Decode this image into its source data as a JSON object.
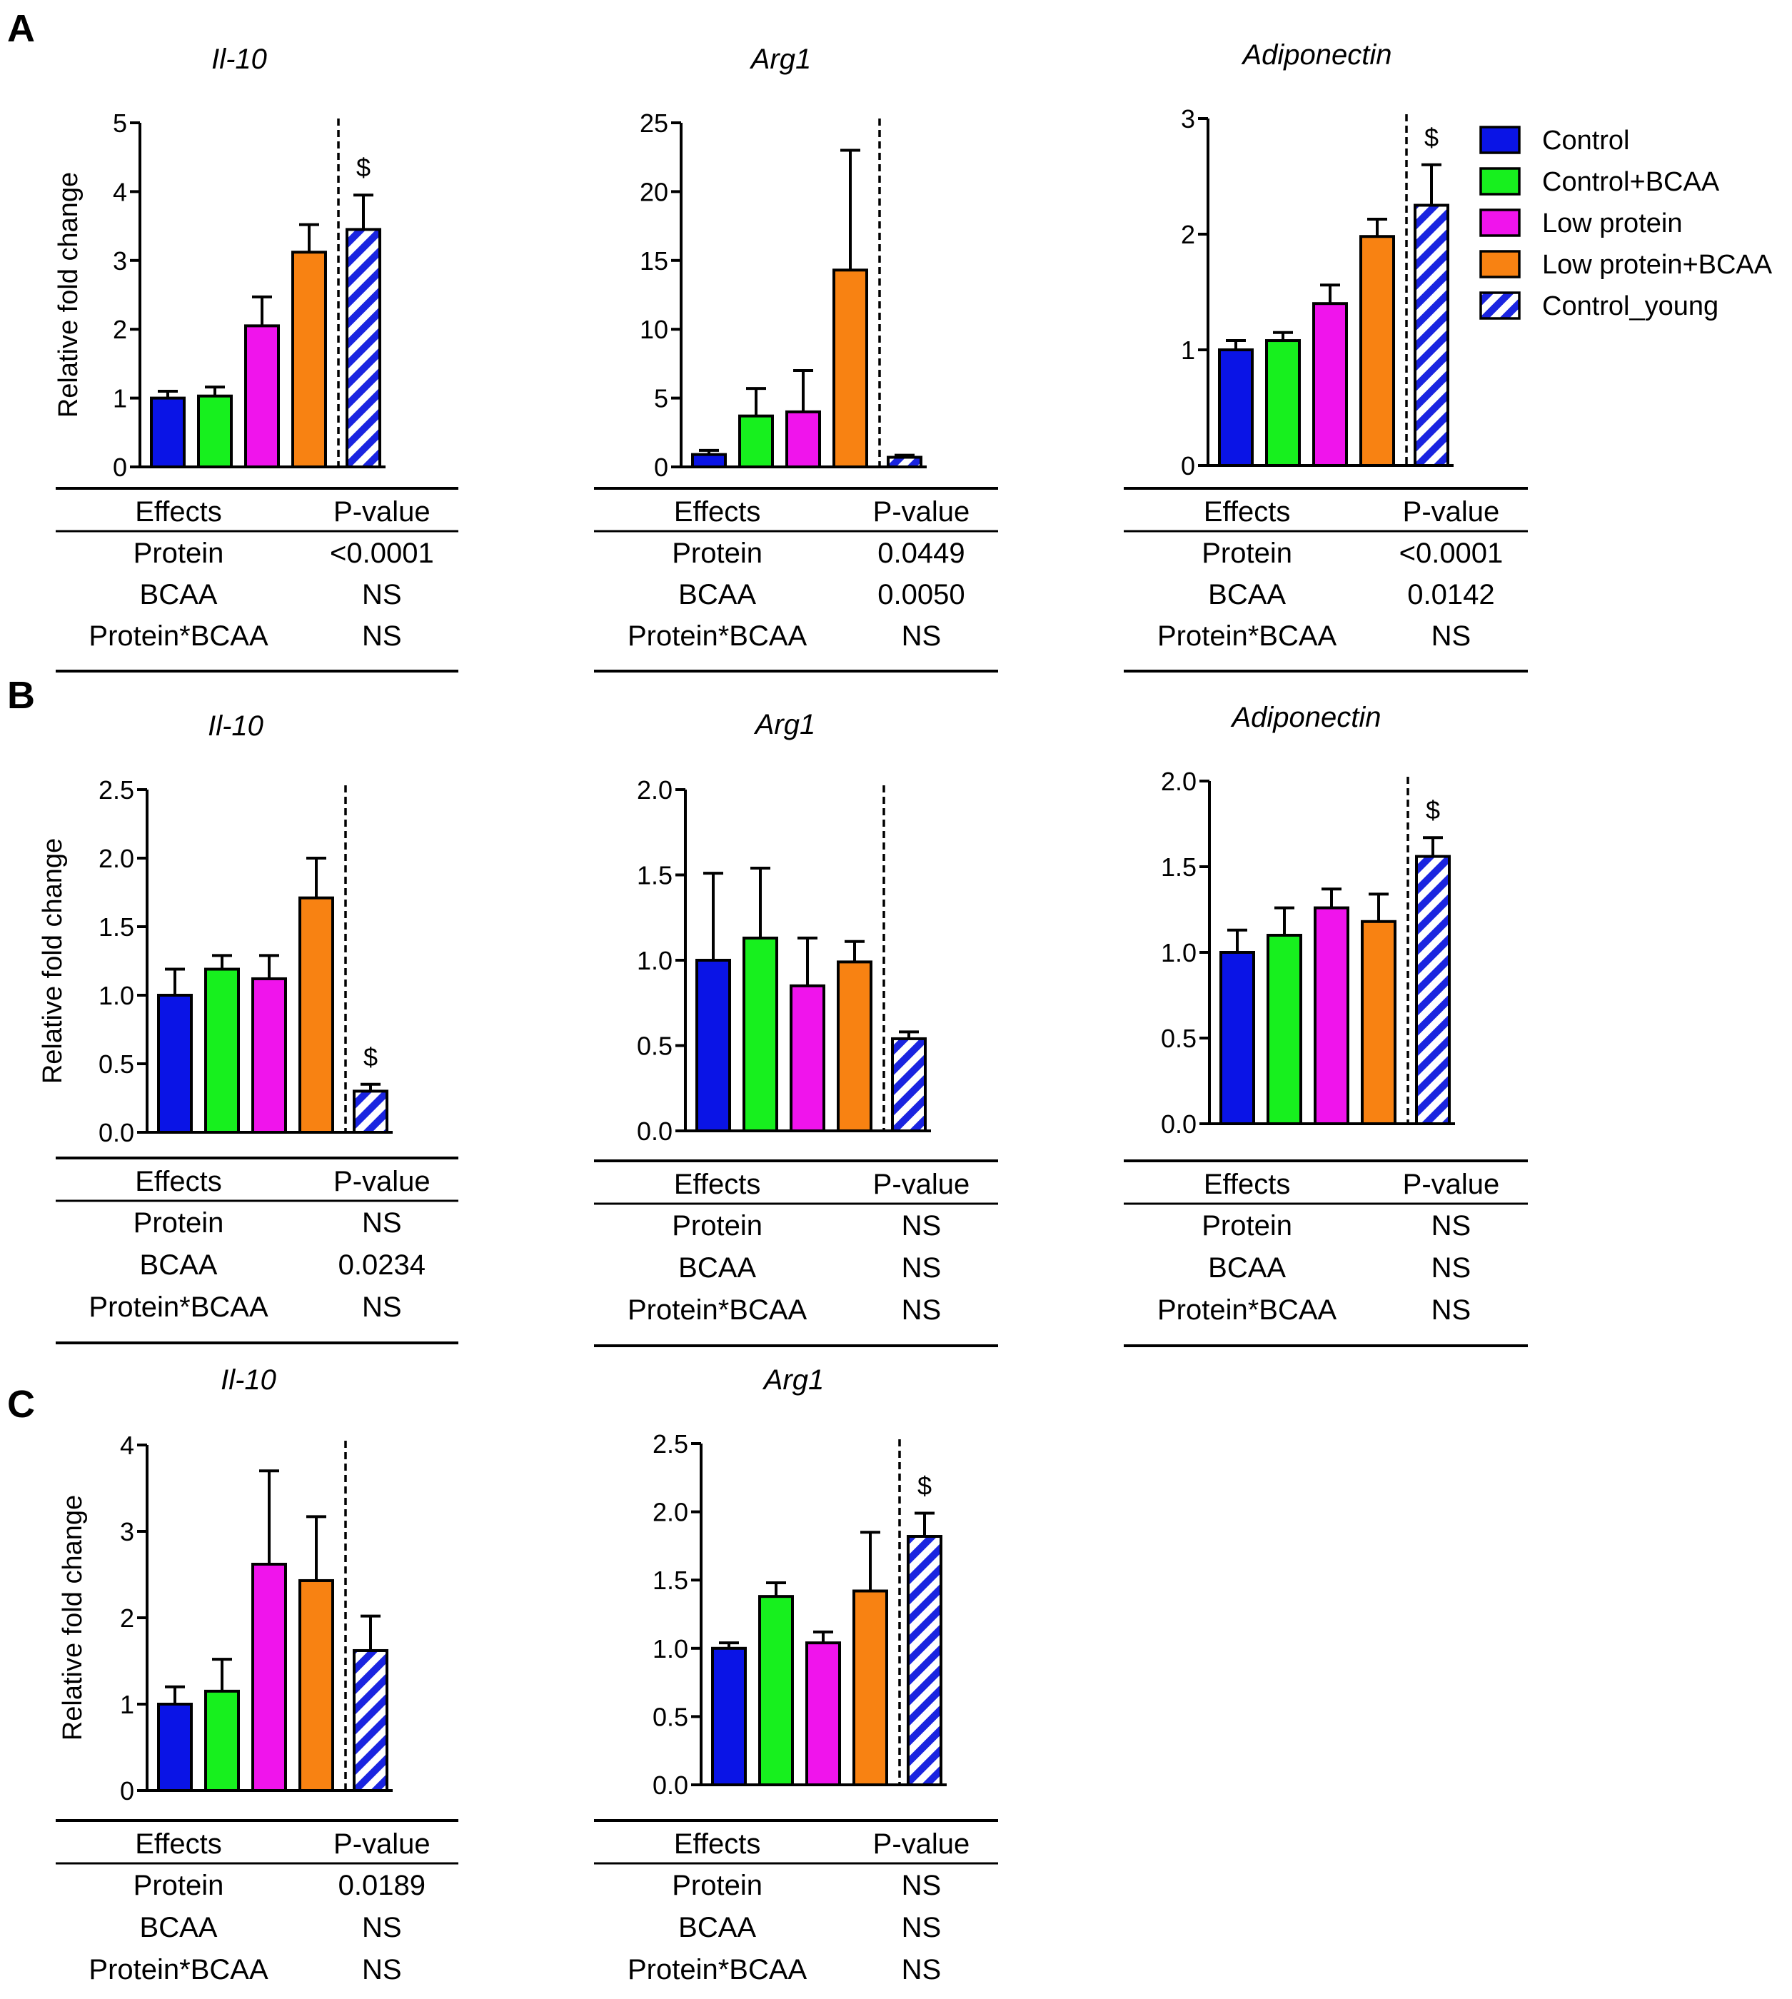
{
  "colors": {
    "control": "#0a14e6",
    "control_bcaa": "#17f01e",
    "low_protein": "#f014ec",
    "low_protein_bcaa": "#f88212",
    "control_young": "#1a24e0"
  },
  "legend": [
    {
      "key": "control",
      "label": "Control",
      "hatch": false
    },
    {
      "key": "control_bcaa",
      "label": "Control+BCAA",
      "hatch": false
    },
    {
      "key": "low_protein",
      "label": "Low protein",
      "hatch": false
    },
    {
      "key": "low_protein_bcaa",
      "label": "Low protein+BCAA",
      "hatch": false
    },
    {
      "key": "control_young",
      "label": "Control_young",
      "hatch": true
    }
  ],
  "table_header": {
    "effects": "Effects",
    "pvalue": "P-value"
  },
  "chart_data": [
    {
      "id": "A1",
      "panel": "A",
      "type": "bar",
      "title": "Il-10",
      "ylabel": "Relative fold change",
      "ylim": [
        0,
        5
      ],
      "ticks": [
        "0",
        "1",
        "2",
        "3",
        "4",
        "5"
      ],
      "values": [
        1.0,
        1.03,
        2.05,
        3.12,
        3.45
      ],
      "errors": [
        0.1,
        0.13,
        0.42,
        0.4,
        0.5
      ],
      "dollar": true,
      "stats": [
        [
          "Protein",
          "<0.0001"
        ],
        [
          "BCAA",
          "NS"
        ],
        [
          "Protein*BCAA",
          "NS"
        ]
      ]
    },
    {
      "id": "A2",
      "panel": "A",
      "type": "bar",
      "title": "Arg1",
      "ylabel": "",
      "ylim": [
        0,
        25
      ],
      "ticks": [
        "0",
        "5",
        "10",
        "15",
        "20",
        "25"
      ],
      "values": [
        0.9,
        3.7,
        4.0,
        14.3,
        0.7
      ],
      "errors": [
        0.3,
        2.0,
        3.0,
        8.7,
        0.15
      ],
      "dollar": false,
      "stats": [
        [
          "Protein",
          "0.0449"
        ],
        [
          "BCAA",
          "0.0050"
        ],
        [
          "Protein*BCAA",
          "NS"
        ]
      ]
    },
    {
      "id": "A3",
      "panel": "A",
      "type": "bar",
      "title": "Adiponectin",
      "ylabel": "",
      "ylim": [
        0,
        3
      ],
      "ticks": [
        "0",
        "1",
        "2",
        "3"
      ],
      "values": [
        1.0,
        1.08,
        1.4,
        1.98,
        2.25
      ],
      "errors": [
        0.08,
        0.07,
        0.16,
        0.15,
        0.35
      ],
      "dollar": true,
      "stats": [
        [
          "Protein",
          "<0.0001"
        ],
        [
          "BCAA",
          "0.0142"
        ],
        [
          "Protein*BCAA",
          "NS"
        ]
      ]
    },
    {
      "id": "B1",
      "panel": "B",
      "type": "bar",
      "title": "Il-10",
      "ylabel": "Relative fold change",
      "ylim": [
        0,
        2.5
      ],
      "ticks": [
        "0.0",
        "0.5",
        "1.0",
        "1.5",
        "2.0",
        "2.5"
      ],
      "values": [
        1.0,
        1.19,
        1.12,
        1.71,
        0.3
      ],
      "errors": [
        0.19,
        0.1,
        0.17,
        0.29,
        0.05
      ],
      "dollar": true,
      "stats": [
        [
          "Protein",
          "NS"
        ],
        [
          "BCAA",
          "0.0234"
        ],
        [
          "Protein*BCAA",
          "NS"
        ]
      ]
    },
    {
      "id": "B2",
      "panel": "B",
      "type": "bar",
      "title": "Arg1",
      "ylabel": "",
      "ylim": [
        0,
        2.0
      ],
      "ticks": [
        "0.0",
        "0.5",
        "1.0",
        "1.5",
        "2.0"
      ],
      "values": [
        1.0,
        1.13,
        0.85,
        0.99,
        0.54
      ],
      "errors": [
        0.51,
        0.41,
        0.28,
        0.12,
        0.04
      ],
      "dollar": false,
      "stats": [
        [
          "Protein",
          "NS"
        ],
        [
          "BCAA",
          "NS"
        ],
        [
          "Protein*BCAA",
          "NS"
        ]
      ]
    },
    {
      "id": "B3",
      "panel": "B",
      "type": "bar",
      "title": "Adiponectin",
      "ylabel": "",
      "ylim": [
        0,
        2.0
      ],
      "ticks": [
        "0.0",
        "0.5",
        "1.0",
        "1.5",
        "2.0"
      ],
      "values": [
        1.0,
        1.1,
        1.26,
        1.18,
        1.56
      ],
      "errors": [
        0.13,
        0.16,
        0.11,
        0.16,
        0.11
      ],
      "dollar": true,
      "stats": [
        [
          "Protein",
          "NS"
        ],
        [
          "BCAA",
          "NS"
        ],
        [
          "Protein*BCAA",
          "NS"
        ]
      ]
    },
    {
      "id": "C1",
      "panel": "C",
      "type": "bar",
      "title": "Il-10",
      "ylabel": "Relative fold change",
      "ylim": [
        0,
        4
      ],
      "ticks": [
        "0",
        "1",
        "2",
        "3",
        "4"
      ],
      "values": [
        1.0,
        1.15,
        2.62,
        2.43,
        1.62
      ],
      "errors": [
        0.2,
        0.37,
        1.08,
        0.74,
        0.4
      ],
      "dollar": false,
      "stats": [
        [
          "Protein",
          "0.0189"
        ],
        [
          "BCAA",
          "NS"
        ],
        [
          "Protein*BCAA",
          "NS"
        ]
      ]
    },
    {
      "id": "C2",
      "panel": "C",
      "type": "bar",
      "title": "Arg1",
      "ylabel": "",
      "ylim": [
        0,
        2.5
      ],
      "ticks": [
        "0.0",
        "0.5",
        "1.0",
        "1.5",
        "2.0",
        "2.5"
      ],
      "values": [
        1.0,
        1.38,
        1.04,
        1.42,
        1.82
      ],
      "errors": [
        0.04,
        0.1,
        0.08,
        0.43,
        0.17
      ],
      "dollar": true,
      "stats": [
        [
          "Protein",
          "NS"
        ],
        [
          "BCAA",
          "NS"
        ],
        [
          "Protein*BCAA",
          "NS"
        ]
      ]
    }
  ],
  "dollar_symbol": "$",
  "panel_labels": [
    "A",
    "B",
    "C"
  ]
}
